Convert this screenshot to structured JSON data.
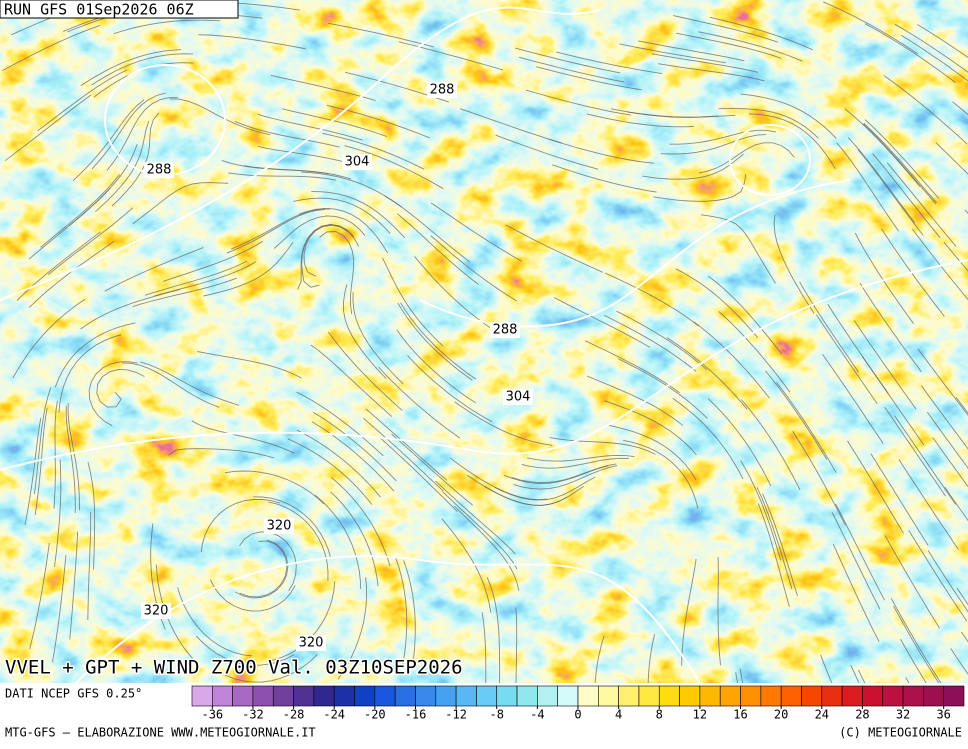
{
  "header": {
    "run": "RUN GFS 01Sep2026 06Z"
  },
  "map": {
    "contour_labels": [
      "288",
      "288",
      "304",
      "288",
      "304",
      "320",
      "320",
      "320"
    ]
  },
  "footer": {
    "title": "VVEL + GPT + WIND Z700 Val. 03Z10SEP2026",
    "source": "DATI NCEP GFS 0.25°",
    "credit_left": "MTG-GFS – ELABORAZIONE WWW.METEOGIORNALE.IT",
    "credit_right": "(C) METEOGIORNALE"
  },
  "colorbar": {
    "range": [
      -38,
      38
    ],
    "ticks": [
      -36,
      -32,
      -28,
      -24,
      -20,
      -16,
      -12,
      -8,
      -4,
      0,
      4,
      8,
      12,
      16,
      20,
      24,
      28,
      32,
      36
    ],
    "colors": [
      "#d8a8e8",
      "#c084d8",
      "#a868c4",
      "#8e50b0",
      "#70409c",
      "#503290",
      "#302890",
      "#1c30a8",
      "#1040c4",
      "#1858dc",
      "#2870e4",
      "#3888ec",
      "#48a0f0",
      "#58b8f4",
      "#68ccf4",
      "#78dcf0",
      "#90e8ee",
      "#b0f2f2",
      "#d4fafa",
      "#fffcc8",
      "#fff8a0",
      "#fff070",
      "#ffe840",
      "#ffdc10",
      "#ffcc00",
      "#ffb800",
      "#ffa400",
      "#ff9000",
      "#ff7800",
      "#fc6000",
      "#f44800",
      "#e83010",
      "#dc1c20",
      "#cc1030",
      "#bc1040",
      "#ac1048",
      "#9c1050",
      "#8c1058"
    ]
  }
}
